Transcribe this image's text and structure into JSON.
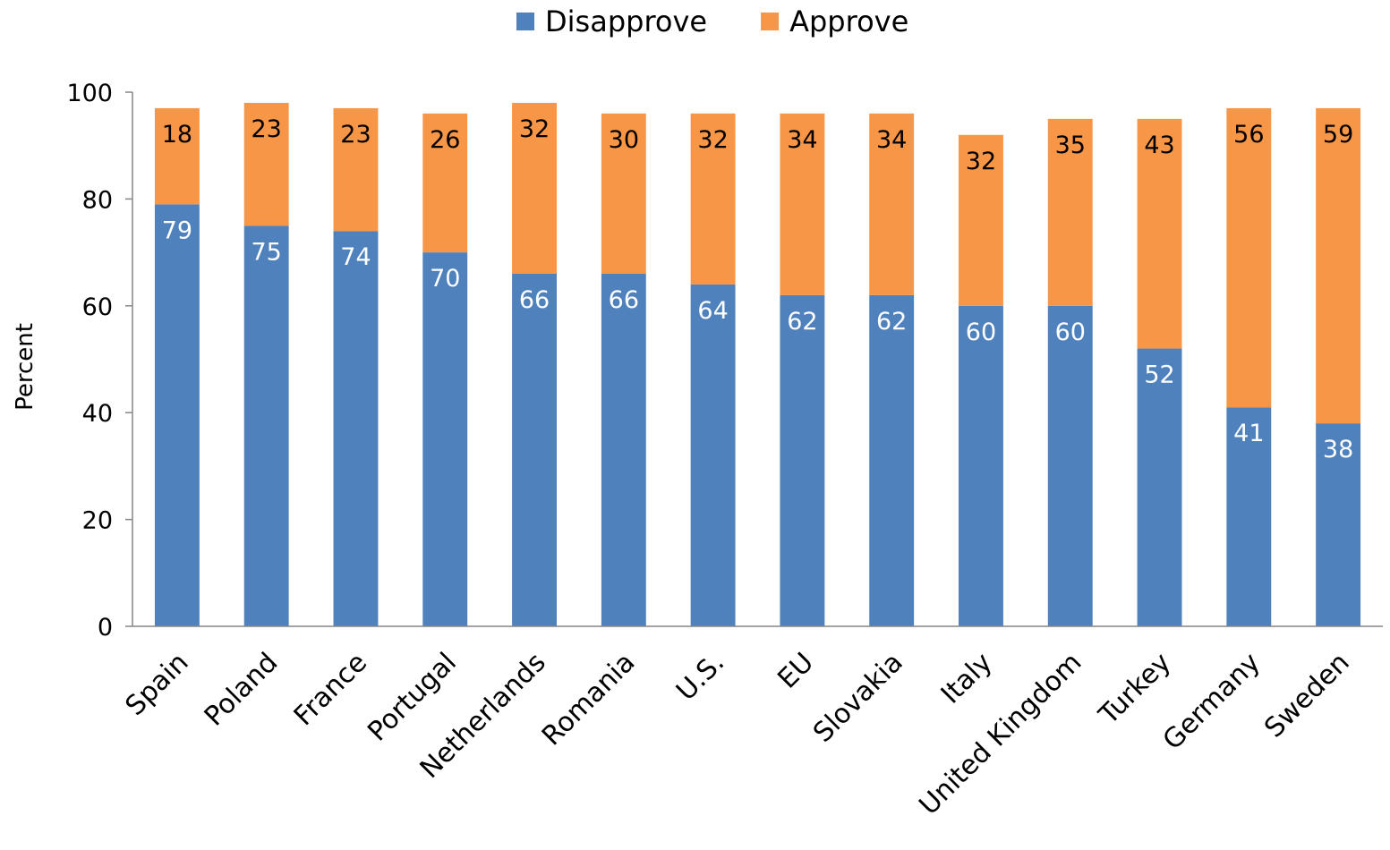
{
  "chart_data": {
    "type": "bar",
    "stacked": true,
    "categories": [
      "Spain",
      "Poland",
      "France",
      "Portugal",
      "Netherlands",
      "Romania",
      "U.S.",
      "EU",
      "Slovakia",
      "Italy",
      "United Kingdom",
      "Turkey",
      "Germany",
      "Sweden"
    ],
    "series": [
      {
        "name": "Disapprove",
        "color": "#4F81BD",
        "label_color": "#FFFFFF",
        "values": [
          79,
          75,
          74,
          70,
          66,
          66,
          64,
          62,
          62,
          60,
          60,
          52,
          41,
          38
        ]
      },
      {
        "name": "Approve",
        "color": "#F79646",
        "label_color": "#000000",
        "values": [
          18,
          23,
          23,
          26,
          32,
          30,
          32,
          34,
          34,
          32,
          35,
          43,
          56,
          59
        ]
      }
    ],
    "title": "",
    "xlabel": "",
    "ylabel": "Percent",
    "ylim": [
      0,
      100
    ],
    "yticks": [
      0,
      20,
      40,
      60,
      80,
      100
    ],
    "grid": false,
    "legend_position": "top-center"
  }
}
